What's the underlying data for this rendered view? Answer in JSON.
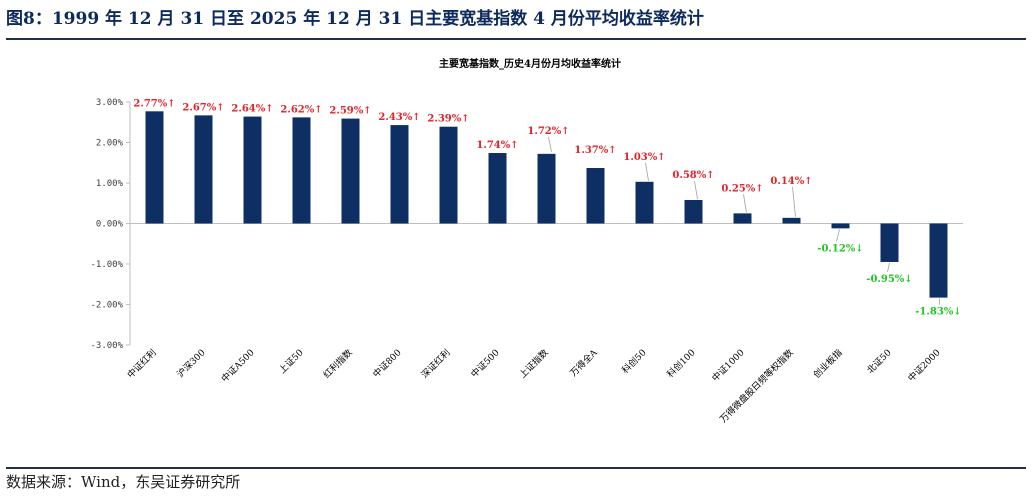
{
  "figure": {
    "title": "图8：1999 年 12 月 31 日至 2025 年 12 月 31 日主要宽基指数 4 月份平均收益率统计",
    "source": "数据来源：Wind，东吴证券研究所"
  },
  "chart_data": {
    "type": "bar",
    "title": "主要宽基指数_历史4月份月均收益率统计",
    "xlabel": "",
    "ylabel": "",
    "ylim": [
      -3.0,
      3.0
    ],
    "ytick_step": 1.0,
    "yticks": [
      "3.00%",
      "2.00%",
      "1.00%",
      "0.00%",
      "-1.00%",
      "-2.00%",
      "-3.00%"
    ],
    "categories": [
      "中证红利",
      "沪深300",
      "中证A500",
      "上证50",
      "红利指数",
      "中证800",
      "深证红利",
      "中证500",
      "上证指数",
      "万得全A",
      "科创50",
      "科创100",
      "中证1000",
      "万得微盘股日频等权指数",
      "创业板指",
      "北证50",
      "中证2000"
    ],
    "values": [
      2.77,
      2.67,
      2.64,
      2.62,
      2.59,
      2.43,
      2.39,
      1.74,
      1.72,
      1.37,
      1.03,
      0.58,
      0.25,
      0.14,
      -0.12,
      -0.95,
      -1.83
    ],
    "data_labels": [
      "2.77%↑",
      "2.67%↑",
      "2.64%↑",
      "2.62%↑",
      "2.59%↑",
      "2.43%↑",
      "2.39%↑",
      "1.74%↑",
      "1.72%↑",
      "1.37%↑",
      "1.03%↑",
      "0.58%↑",
      "0.25%↑",
      "0.14%↑",
      "-0.12%↓",
      "-0.95%↓",
      "-1.83%↓"
    ],
    "grid": false,
    "colors": {
      "bar": "#0e2f63",
      "positive_label": "#e0242b",
      "negative_label": "#21c421",
      "axis": "#bfbfbf"
    }
  }
}
